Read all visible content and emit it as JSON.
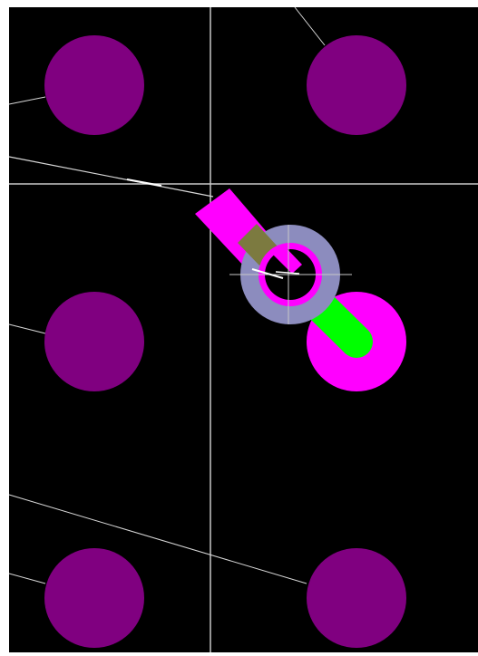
{
  "canvas": {
    "name": "pcb-layout-view",
    "background": "#000000",
    "frame": "#ffffff"
  },
  "colors": {
    "pad": "#800080",
    "crosshair": "#c8c8c8",
    "ratsnest": "#d7d7d7",
    "highlight_trace": "#ff00ff",
    "highlight_pad": "#ff00ff",
    "via_ring": "#8c8cbe",
    "via_overlap": "#7c7a40",
    "selected_trace": "#00ff00",
    "dimension_line": "#ffffff"
  },
  "pads": [
    {
      "id": "pad-top-left",
      "net": "unrouted"
    },
    {
      "id": "pad-top-right",
      "net": "unrouted"
    },
    {
      "id": "pad-middle-left",
      "net": "unrouted"
    },
    {
      "id": "pad-bottom-left",
      "net": "unrouted"
    },
    {
      "id": "pad-bottom-right",
      "net": "unrouted"
    }
  ],
  "highlighted_pad": {
    "id": "pad-middle-right",
    "state": "highlighted"
  },
  "via": {
    "id": "via",
    "state": "selected"
  },
  "tool": {
    "name": "route-track",
    "cursor": "crosshair"
  }
}
